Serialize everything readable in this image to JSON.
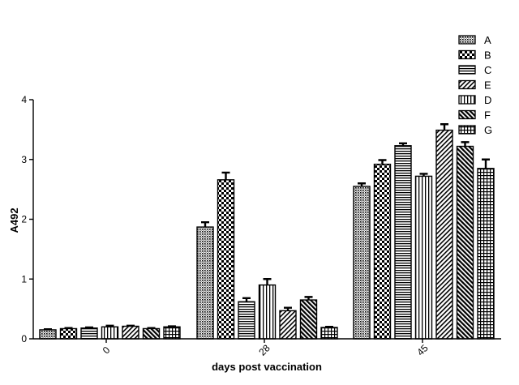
{
  "chart_data": {
    "type": "bar",
    "xlabel": "days post vaccination",
    "ylabel": "A492",
    "ylim": [
      0,
      4
    ],
    "yticks": [
      0,
      1,
      2,
      3,
      4
    ],
    "grid": false,
    "legend_position": "top-right",
    "categories": [
      "0",
      "28",
      "45"
    ],
    "series": [
      {
        "name": "A",
        "pattern": "dots",
        "values": [
          0.15,
          1.87,
          2.55
        ],
        "errors": [
          0.01,
          0.08,
          0.05
        ]
      },
      {
        "name": "B",
        "pattern": "checker",
        "values": [
          0.17,
          2.66,
          2.92
        ],
        "errors": [
          0.01,
          0.12,
          0.07
        ]
      },
      {
        "name": "C",
        "pattern": "hlines",
        "values": [
          0.18,
          0.62,
          3.23
        ],
        "errors": [
          0.01,
          0.06,
          0.04
        ]
      },
      {
        "name": "D",
        "pattern": "vlines",
        "values": [
          0.2,
          0.9,
          2.72
        ],
        "errors": [
          0.02,
          0.1,
          0.04
        ]
      },
      {
        "name": "E",
        "pattern": "diagfine",
        "values": [
          0.21,
          0.47,
          3.49
        ],
        "errors": [
          0.01,
          0.05,
          0.1
        ]
      },
      {
        "name": "F",
        "pattern": "diagbold",
        "values": [
          0.17,
          0.65,
          3.22
        ],
        "errors": [
          0.01,
          0.05,
          0.07
        ]
      },
      {
        "name": "G",
        "pattern": "grid",
        "values": [
          0.2,
          0.19,
          2.85
        ],
        "errors": [
          0.01,
          0.01,
          0.15
        ]
      }
    ],
    "legend_order": [
      "A",
      "B",
      "C",
      "E",
      "D",
      "F",
      "G"
    ],
    "colors": {
      "fill": "#000000",
      "background": "#ffffff"
    }
  }
}
